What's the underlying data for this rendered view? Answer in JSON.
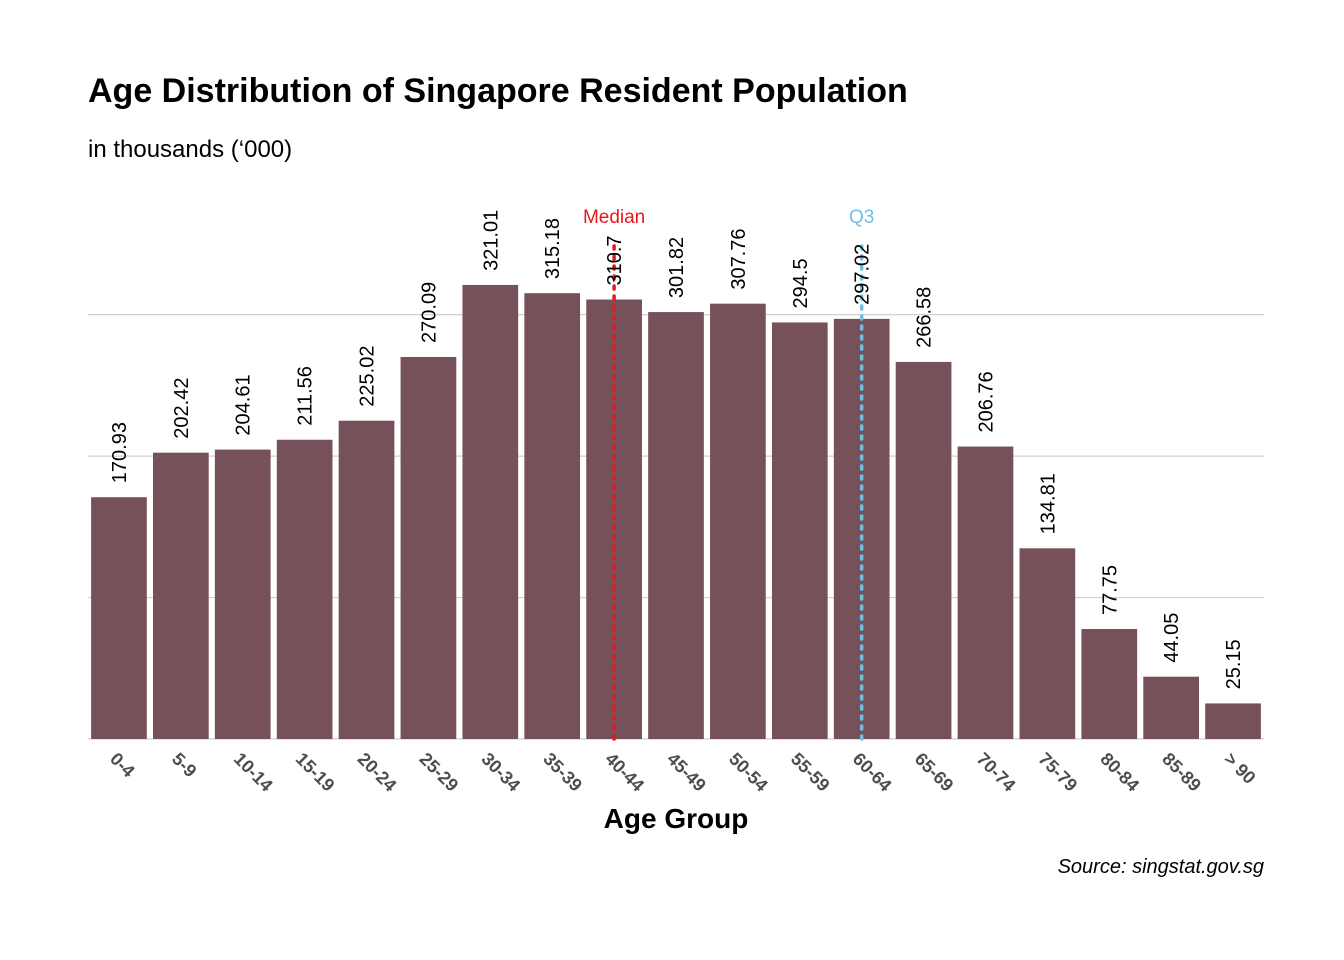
{
  "chart_data": {
    "type": "bar",
    "title": "Age Distribution of Singapore Resident Population",
    "subtitle": "in thousands (‘000)",
    "xlabel": "Age Group",
    "ylabel": "",
    "caption": "Source: singstat.gov.sg",
    "categories": [
      "0-4",
      "5-9",
      "10-14",
      "15-19",
      "20-24",
      "25-29",
      "30-34",
      "35-39",
      "40-44",
      "45-49",
      "50-54",
      "55-59",
      "60-64",
      "65-69",
      "70-74",
      "75-79",
      "80-84",
      "85-89",
      "> 90"
    ],
    "values": [
      170.93,
      202.42,
      204.61,
      211.56,
      225.02,
      270.09,
      321.01,
      315.18,
      310.7,
      301.82,
      307.76,
      294.5,
      297.02,
      266.58,
      206.76,
      134.81,
      77.75,
      44.05,
      25.15
    ],
    "ylim": [
      0,
      350
    ],
    "gridlines": [
      0,
      100,
      200,
      300
    ],
    "grid": true,
    "y_tick_labels_shown": false,
    "bar_color": "#76515a",
    "annotations": [
      {
        "label": "Median",
        "category": "40-44",
        "color": "#e8171c",
        "style": "dotted"
      },
      {
        "label": "Q3",
        "category": "60-64",
        "color": "#6ec1e4",
        "style": "dotted"
      }
    ]
  }
}
